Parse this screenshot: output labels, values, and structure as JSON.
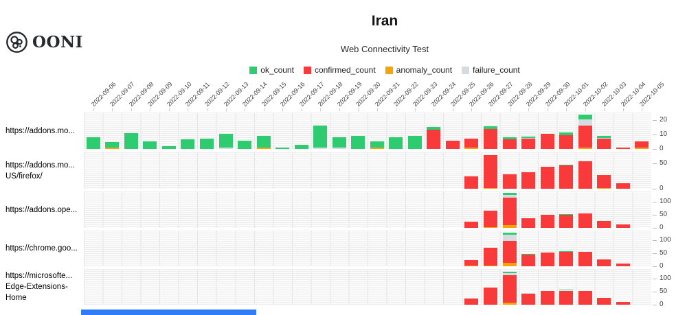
{
  "logo": {
    "text": "OONI"
  },
  "header": {
    "title": "Iran",
    "subtitle": "Web Connectivity Test"
  },
  "legend": [
    {
      "key": "ok_count",
      "label": "ok_count",
      "color": "#2ecc71"
    },
    {
      "key": "confirmed_count",
      "label": "confirmed_count",
      "color": "#f93a3a"
    },
    {
      "key": "anomaly_count",
      "label": "anomaly_count",
      "color": "#f5a50a"
    },
    {
      "key": "failure_count",
      "label": "failure_count",
      "color": "#d6dbe1"
    }
  ],
  "chart_data": {
    "type": "bar",
    "stacked": true,
    "grid": true,
    "legend_position": "top",
    "title": "Iran",
    "subtitle": "Web Connectivity Test",
    "stack_order": [
      "anomaly_count",
      "confirmed_count",
      "failure_count",
      "ok_count"
    ],
    "x": [
      "2022-09-06",
      "2022-09-07",
      "2022-09-08",
      "2022-09-09",
      "2022-09-10",
      "2022-09-11",
      "2022-09-12",
      "2022-09-13",
      "2022-09-14",
      "2022-09-15",
      "2022-09-16",
      "2022-09-17",
      "2022-09-18",
      "2022-09-19",
      "2022-09-20",
      "2022-09-21",
      "2022-09-22",
      "2022-09-23",
      "2022-09-24",
      "2022-09-25",
      "2022-09-26",
      "2022-09-27",
      "2022-09-28",
      "2022-09-29",
      "2022-09-30",
      "2022-10-01",
      "2022-10-02",
      "2022-10-03",
      "2022-10-04",
      "2022-10-05"
    ],
    "rows": [
      {
        "label_lines": [
          "https://addons.mo..."
        ],
        "ylim": [
          0,
          25
        ],
        "yticks": [
          0,
          10,
          20
        ],
        "ok_count": [
          8,
          3.5,
          11,
          5,
          2,
          6.5,
          7,
          9.5,
          5.5,
          8,
          1,
          3,
          15,
          7,
          9,
          4,
          8,
          9,
          2,
          0,
          0,
          2,
          1.5,
          1,
          0,
          2,
          3,
          1.5,
          0,
          0
        ],
        "anomaly_count": [
          0,
          1,
          0,
          0,
          0,
          0,
          0,
          0,
          0,
          1,
          0,
          0,
          0,
          0,
          0,
          1,
          0,
          0,
          0,
          0,
          1,
          0,
          0,
          0,
          0,
          0,
          1,
          0,
          0,
          1
        ],
        "confirmed_count": [
          0,
          0,
          0,
          0,
          0,
          0,
          0,
          0,
          0,
          0,
          0,
          0,
          0,
          0,
          0,
          0,
          0,
          0,
          13,
          5.5,
          6,
          13.5,
          6.5,
          7,
          10.5,
          9.5,
          15,
          7,
          1,
          4
        ],
        "failure_count": [
          0,
          0,
          0,
          0,
          0,
          0,
          0,
          1,
          0,
          0,
          0,
          0,
          1,
          1,
          0,
          0,
          0,
          0,
          0,
          0,
          0,
          0,
          0,
          0.5,
          0,
          0,
          4.5,
          0.5,
          0,
          0
        ]
      },
      {
        "label_lines": [
          "https://addons.mo...",
          "US/firefox/"
        ],
        "ylim": [
          0,
          72
        ],
        "yticks": [
          0,
          50
        ],
        "ok_count": [
          0,
          0,
          0,
          0,
          0,
          0,
          0,
          0,
          0,
          0,
          0,
          0,
          0,
          0,
          0,
          0,
          0,
          0,
          0,
          0,
          0,
          0,
          0,
          0,
          0,
          1,
          0,
          0,
          0,
          0
        ],
        "anomaly_count": [
          0,
          0,
          0,
          0,
          0,
          0,
          0,
          0,
          0,
          0,
          0,
          0,
          0,
          0,
          0,
          0,
          0,
          0,
          0,
          0,
          0,
          1,
          0,
          0,
          0,
          0,
          0,
          1,
          0,
          0
        ],
        "confirmed_count": [
          0,
          0,
          0,
          0,
          0,
          0,
          0,
          0,
          0,
          0,
          0,
          0,
          0,
          0,
          0,
          0,
          0,
          0,
          0,
          0,
          24,
          66,
          29,
          33,
          44,
          46,
          54,
          26,
          11,
          0
        ],
        "failure_count": [
          0,
          0,
          0,
          0,
          0,
          0,
          0,
          0,
          0,
          0,
          0,
          0,
          0,
          0,
          0,
          0,
          0,
          0,
          0,
          0,
          0,
          0,
          0,
          0,
          0,
          0,
          0,
          0,
          0,
          0
        ]
      },
      {
        "label_lines": [
          "https://addons.ope..."
        ],
        "ylim": [
          0,
          139
        ],
        "yticks": [
          0,
          50,
          100
        ],
        "ok_count": [
          0,
          0,
          0,
          0,
          0,
          0,
          0,
          0,
          0,
          0,
          0,
          0,
          0,
          0,
          0,
          0,
          0,
          0,
          0,
          0,
          0,
          0,
          8,
          0,
          0,
          2,
          0,
          0,
          0,
          0
        ],
        "anomaly_count": [
          0,
          0,
          0,
          0,
          0,
          0,
          0,
          0,
          0,
          0,
          0,
          0,
          0,
          0,
          0,
          0,
          0,
          0,
          0,
          0,
          0,
          3,
          10,
          0,
          0,
          0,
          0,
          0,
          0,
          0
        ],
        "confirmed_count": [
          0,
          0,
          0,
          0,
          0,
          0,
          0,
          0,
          0,
          0,
          0,
          0,
          0,
          0,
          0,
          0,
          0,
          0,
          0,
          0,
          24,
          62,
          105,
          38,
          50,
          51,
          54,
          27,
          12,
          0
        ],
        "failure_count": [
          0,
          0,
          0,
          0,
          0,
          0,
          0,
          0,
          0,
          0,
          0,
          0,
          0,
          0,
          0,
          0,
          0,
          0,
          0,
          0,
          0,
          0,
          10,
          0,
          0,
          0,
          0,
          0,
          0,
          0
        ]
      },
      {
        "label_lines": [
          "https://chrome.goo..."
        ],
        "ylim": [
          0,
          137
        ],
        "yticks": [
          0,
          50,
          100
        ],
        "ok_count": [
          0,
          0,
          0,
          0,
          0,
          0,
          0,
          0,
          0,
          0,
          0,
          0,
          0,
          0,
          0,
          0,
          0,
          0,
          0,
          0,
          0,
          0,
          8,
          2,
          0,
          3,
          0,
          0,
          0,
          0
        ],
        "anomaly_count": [
          0,
          0,
          0,
          0,
          0,
          0,
          0,
          0,
          0,
          0,
          0,
          0,
          0,
          0,
          0,
          0,
          0,
          0,
          0,
          0,
          2,
          2,
          12,
          0,
          0,
          0,
          0,
          0,
          0,
          0
        ],
        "confirmed_count": [
          0,
          0,
          0,
          0,
          0,
          0,
          0,
          0,
          0,
          0,
          0,
          0,
          0,
          0,
          0,
          0,
          0,
          0,
          0,
          0,
          22,
          68,
          85,
          45,
          53,
          55,
          55,
          26,
          11,
          0
        ],
        "failure_count": [
          0,
          0,
          0,
          0,
          0,
          0,
          0,
          0,
          0,
          0,
          0,
          0,
          0,
          0,
          0,
          0,
          0,
          0,
          0,
          0,
          0,
          0,
          24,
          0,
          0,
          0,
          0,
          0,
          0,
          0
        ]
      },
      {
        "label_lines": [
          "https://microsofte...",
          "Edge-Extensions-",
          "Home"
        ],
        "ylim": [
          0,
          137
        ],
        "yticks": [
          0,
          50,
          100
        ],
        "ok_count": [
          0,
          0,
          0,
          0,
          0,
          0,
          0,
          0,
          0,
          0,
          0,
          0,
          0,
          0,
          0,
          0,
          0,
          0,
          0,
          0,
          0,
          0,
          5,
          0,
          0,
          3,
          0,
          0,
          0,
          0
        ],
        "anomaly_count": [
          0,
          0,
          0,
          0,
          0,
          0,
          0,
          0,
          0,
          0,
          0,
          0,
          0,
          0,
          0,
          0,
          0,
          0,
          0,
          0,
          0,
          0,
          8,
          0,
          0,
          0,
          0,
          0,
          0,
          0
        ],
        "confirmed_count": [
          0,
          0,
          0,
          0,
          0,
          0,
          0,
          0,
          0,
          0,
          0,
          0,
          0,
          0,
          0,
          0,
          0,
          0,
          0,
          0,
          24,
          66,
          105,
          42,
          52,
          54,
          52,
          26,
          10,
          0
        ],
        "failure_count": [
          0,
          0,
          0,
          0,
          0,
          0,
          0,
          0,
          0,
          0,
          0,
          0,
          0,
          0,
          0,
          0,
          0,
          0,
          0,
          0,
          0,
          0,
          8,
          2,
          0,
          0,
          0,
          0,
          0,
          0
        ]
      }
    ]
  }
}
